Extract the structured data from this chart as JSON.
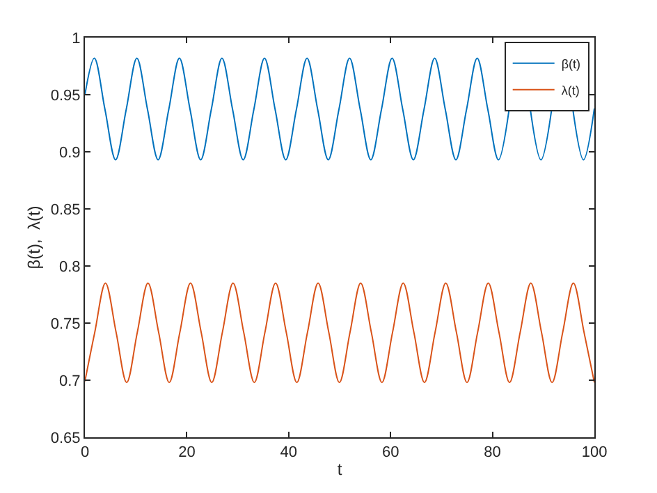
{
  "chart_data": {
    "type": "line",
    "xlabel": "t",
    "ylabel": "β(t),  λ(t)",
    "xlim": [
      0,
      100
    ],
    "xticks": [
      0,
      20,
      40,
      60,
      80,
      100
    ],
    "ylim": [
      0.65,
      1
    ],
    "yticks": [
      0.65,
      0.7,
      0.75,
      0.8,
      0.85,
      0.9,
      0.95,
      1
    ],
    "legend": "top right",
    "line_style": "solid",
    "marker": "none",
    "series": [
      {
        "name": "β(t)",
        "color": "#0072bd",
        "x": [
          0,
          1.85,
          3.94,
          6.02,
          8.11,
          10.2,
          12.29,
          14.37,
          16.46,
          18.55,
          20.64,
          22.72,
          24.81,
          26.9,
          28.99,
          31.07,
          33.16,
          35.25,
          37.34,
          39.42,
          41.51,
          43.6,
          45.69,
          47.77,
          49.86,
          51.95,
          54.04,
          56.12,
          58.21,
          60.3,
          62.39,
          64.47,
          66.56,
          68.65,
          70.74,
          72.82,
          74.91,
          77.0,
          79.09,
          81.17,
          83.26,
          85.35,
          87.44,
          89.52,
          91.61,
          93.7,
          95.79,
          97.87,
          100
        ],
        "values": [
          0.95,
          0.982,
          0.937,
          0.893,
          0.937,
          0.982,
          0.937,
          0.893,
          0.937,
          0.982,
          0.937,
          0.893,
          0.937,
          0.982,
          0.937,
          0.893,
          0.937,
          0.982,
          0.937,
          0.893,
          0.937,
          0.982,
          0.937,
          0.893,
          0.937,
          0.982,
          0.937,
          0.893,
          0.937,
          0.982,
          0.937,
          0.893,
          0.937,
          0.982,
          0.937,
          0.893,
          0.937,
          0.982,
          0.937,
          0.893,
          0.937,
          null,
          0.937,
          0.893,
          0.937,
          null,
          0.937,
          0.893,
          0.938
        ]
      },
      {
        "name": "λ(t)",
        "color": "#d95319",
        "x": [
          0,
          1.94,
          4.03,
          6.12,
          8.2,
          10.29,
          12.38,
          14.47,
          16.55,
          18.64,
          20.73,
          22.82,
          24.9,
          26.99,
          29.08,
          31.17,
          33.25,
          35.34,
          37.43,
          39.52,
          41.6,
          43.69,
          45.78,
          47.87,
          49.95,
          52.04,
          54.13,
          56.22,
          58.3,
          60.39,
          62.48,
          64.57,
          66.65,
          68.74,
          70.83,
          72.92,
          75.0,
          77.09,
          79.18,
          81.27,
          83.35,
          85.44,
          87.53,
          89.62,
          91.7,
          93.79,
          95.88,
          97.97,
          100
        ],
        "values": [
          0.699,
          0.742,
          0.785,
          0.742,
          0.698,
          0.742,
          0.785,
          0.742,
          0.698,
          0.742,
          0.785,
          0.742,
          0.698,
          0.742,
          0.785,
          0.742,
          0.698,
          0.742,
          0.785,
          0.742,
          0.698,
          0.742,
          0.785,
          0.742,
          0.698,
          0.742,
          0.785,
          0.742,
          0.698,
          0.742,
          0.785,
          0.742,
          0.698,
          0.742,
          0.785,
          0.742,
          0.698,
          0.742,
          0.785,
          0.742,
          0.698,
          0.742,
          0.785,
          0.742,
          0.698,
          0.742,
          0.785,
          0.742,
          0.698
        ]
      }
    ]
  }
}
